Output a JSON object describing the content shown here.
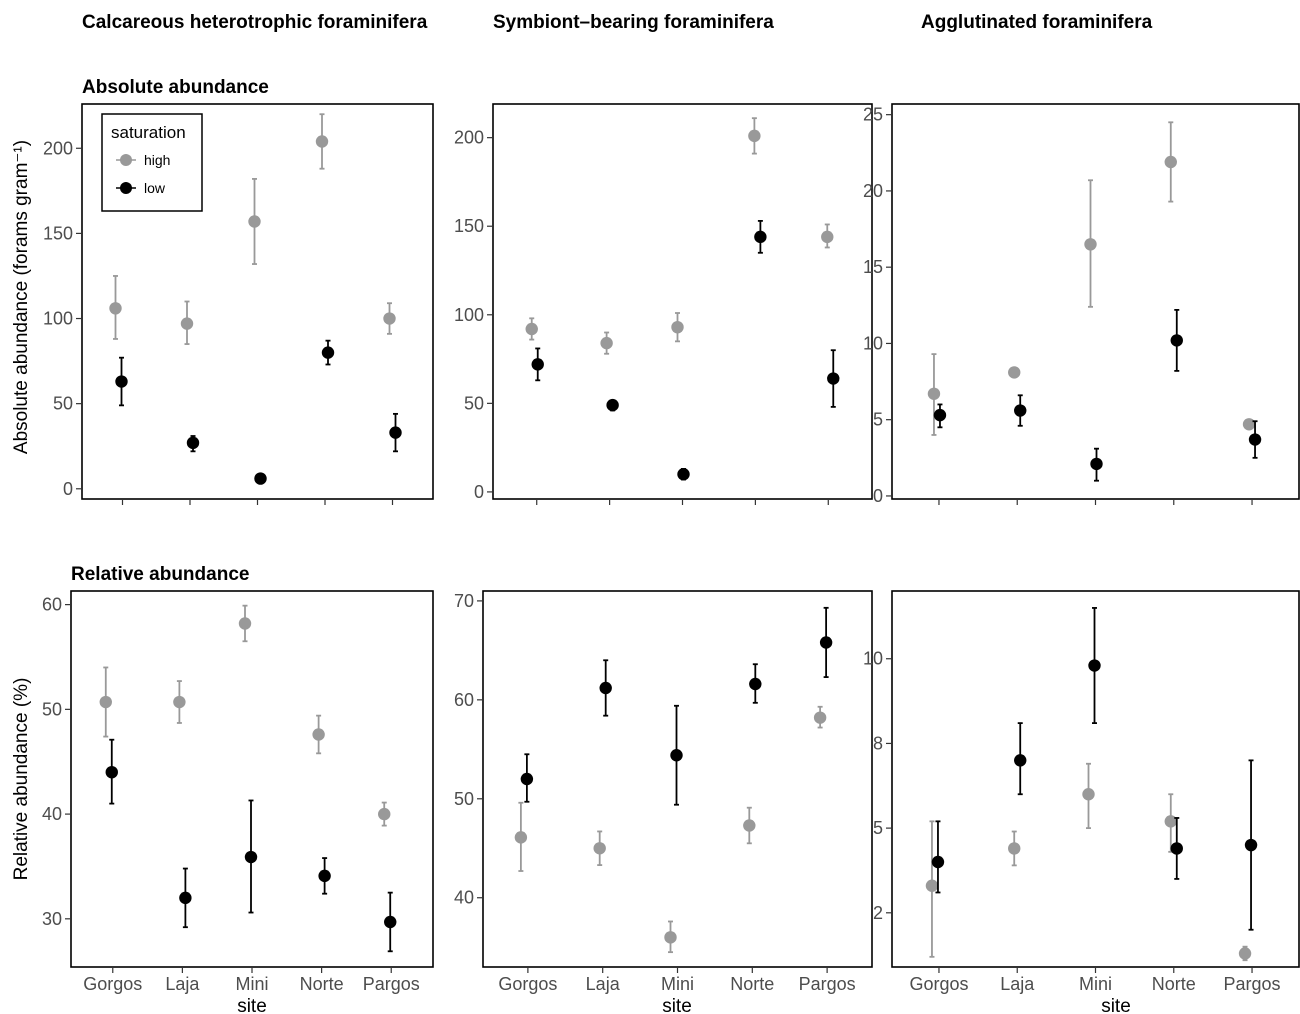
{
  "column_titles": [
    "Calcareous heterotrophic foraminifera",
    "Symbiont–bearing foraminifera",
    "Agglutinated foraminifera"
  ],
  "row_titles": [
    "Absolute abundance",
    "Relative abundance"
  ],
  "ylabels": [
    "Absolute abundance (forams gram⁻¹)",
    "Relative abundance (%)"
  ],
  "xlabel": "site",
  "legend": {
    "title": "saturation",
    "entries": [
      "high",
      "low"
    ],
    "position": "top-left"
  },
  "colors": {
    "high": "#999999",
    "low": "#000000",
    "axis": "#000000",
    "tick_text": "#4d4d4d"
  },
  "chart_data": [
    {
      "type": "scatter",
      "row": "Absolute abundance",
      "column": "Calcareous heterotrophic foraminifera",
      "categories": [
        "Gorgos",
        "Laja",
        "Mini",
        "Norte",
        "Pargos"
      ],
      "ylim": [
        -6,
        226
      ],
      "yticks": [
        0,
        50,
        100,
        150,
        200
      ],
      "ytick_labels": [
        "0",
        "50",
        "100",
        "150",
        "200"
      ],
      "series": [
        {
          "name": "high",
          "values": [
            106,
            97,
            157,
            204,
            100
          ],
          "lower": [
            88,
            85,
            132,
            188,
            91
          ],
          "upper": [
            125,
            110,
            182,
            220,
            109
          ]
        },
        {
          "name": "low",
          "values": [
            63,
            27,
            6,
            80,
            33
          ],
          "lower": [
            49,
            22,
            4,
            73,
            22
          ],
          "upper": [
            77,
            31,
            8,
            87,
            44
          ]
        }
      ]
    },
    {
      "type": "scatter",
      "row": "Absolute abundance",
      "column": "Symbiont–bearing foraminifera",
      "categories": [
        "Gorgos",
        "Laja",
        "Mini",
        "Norte",
        "Pargos"
      ],
      "ylim": [
        -4,
        219
      ],
      "yticks": [
        0,
        50,
        100,
        150,
        200
      ],
      "ytick_labels": [
        "0",
        "50",
        "100",
        "150",
        "200"
      ],
      "series": [
        {
          "name": "high",
          "values": [
            92,
            84,
            93,
            201,
            144
          ],
          "lower": [
            86,
            78,
            85,
            191,
            138
          ],
          "upper": [
            98,
            90,
            101,
            211,
            151
          ]
        },
        {
          "name": "low",
          "values": [
            72,
            49,
            10,
            144,
            64
          ],
          "lower": [
            63,
            46,
            7,
            135,
            48
          ],
          "upper": [
            81,
            51,
            13,
            153,
            80
          ]
        }
      ]
    },
    {
      "type": "scatter",
      "row": "Absolute abundance",
      "column": "Agglutinated foraminifera",
      "categories": [
        "Gorgos",
        "Laja",
        "Mini",
        "Norte",
        "Pargos"
      ],
      "ylim": [
        -0.2,
        25.7
      ],
      "yticks": [
        0,
        5,
        10,
        15,
        20,
        25
      ],
      "ytick_labels": [
        "0",
        "5",
        "10",
        "15",
        "20",
        "25"
      ],
      "series": [
        {
          "name": "high",
          "values": [
            6.7,
            8.1,
            16.5,
            21.9,
            4.7
          ],
          "lower": [
            4.0,
            7.8,
            12.4,
            19.3,
            4.4
          ],
          "upper": [
            9.3,
            8.4,
            20.7,
            24.5,
            5.0
          ]
        },
        {
          "name": "low",
          "values": [
            5.3,
            5.6,
            2.1,
            10.2,
            3.7
          ],
          "lower": [
            4.5,
            4.6,
            1.0,
            8.2,
            2.5
          ],
          "upper": [
            6.0,
            6.6,
            3.1,
            12.2,
            4.9
          ]
        }
      ]
    },
    {
      "type": "scatter",
      "row": "Relative abundance",
      "column": "Calcareous heterotrophic foraminifera",
      "categories": [
        "Gorgos",
        "Laja",
        "Mini",
        "Norte",
        "Pargos"
      ],
      "ylim": [
        25.4,
        61.3
      ],
      "yticks": [
        30,
        40,
        50,
        60
      ],
      "ytick_labels": [
        "30",
        "40",
        "50",
        "60"
      ],
      "series": [
        {
          "name": "high",
          "values": [
            50.7,
            50.7,
            58.2,
            47.6,
            40.0
          ],
          "lower": [
            47.4,
            48.7,
            56.5,
            45.8,
            38.9
          ],
          "upper": [
            54.0,
            52.7,
            59.9,
            49.4,
            41.1
          ]
        },
        {
          "name": "low",
          "values": [
            44.0,
            32.0,
            35.9,
            34.1,
            29.7
          ],
          "lower": [
            41.0,
            29.2,
            30.6,
            32.4,
            26.9
          ],
          "upper": [
            47.1,
            34.8,
            41.3,
            35.8,
            32.5
          ]
        }
      ]
    },
    {
      "type": "scatter",
      "row": "Relative abundance",
      "column": "Symbiont–bearing foraminifera",
      "categories": [
        "Gorgos",
        "Laja",
        "Mini",
        "Norte",
        "Pargos"
      ],
      "ylim": [
        33,
        71
      ],
      "yticks": [
        40,
        50,
        60,
        70
      ],
      "ytick_labels": [
        "40",
        "50",
        "60",
        "70"
      ],
      "series": [
        {
          "name": "high",
          "values": [
            46.1,
            45.0,
            36.0,
            47.3,
            58.2
          ],
          "lower": [
            42.7,
            43.3,
            34.5,
            45.5,
            57.2
          ],
          "upper": [
            49.6,
            46.7,
            37.6,
            49.1,
            59.3
          ]
        },
        {
          "name": "low",
          "values": [
            52.0,
            61.2,
            54.4,
            61.6,
            65.8
          ],
          "lower": [
            49.7,
            58.4,
            49.4,
            59.7,
            62.3
          ],
          "upper": [
            54.5,
            64.0,
            59.4,
            63.6,
            69.3
          ]
        }
      ]
    },
    {
      "type": "scatter",
      "row": "Relative abundance",
      "column": "Agglutinated foraminifera",
      "categories": [
        "Gorgos",
        "Laja",
        "Mini",
        "Norte",
        "Pargos"
      ],
      "ylim": [
        0.9,
        12.0
      ],
      "yticks": [
        2.5,
        5,
        7.5,
        10
      ],
      "ytick_labels": [
        "2",
        "5",
        "8",
        "10"
      ],
      "series": [
        {
          "name": "high",
          "values": [
            3.3,
            4.4,
            6.0,
            5.2,
            1.3
          ],
          "lower": [
            1.2,
            3.9,
            5.0,
            4.3,
            1.1
          ],
          "upper": [
            5.2,
            4.9,
            6.9,
            6.0,
            1.5
          ]
        },
        {
          "name": "low",
          "values": [
            4.0,
            7.0,
            9.8,
            4.4,
            4.5
          ],
          "lower": [
            3.1,
            6.0,
            8.1,
            3.5,
            2.0
          ],
          "upper": [
            5.2,
            8.1,
            11.5,
            5.3,
            7.0
          ]
        }
      ]
    }
  ]
}
